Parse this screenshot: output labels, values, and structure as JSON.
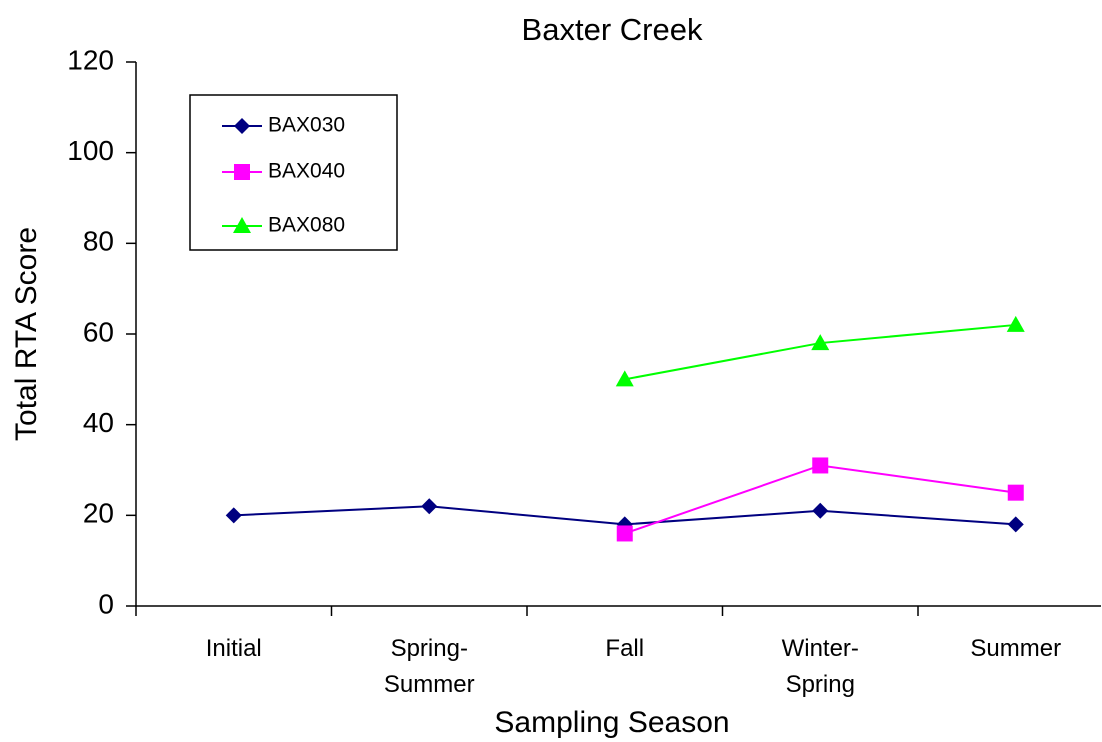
{
  "chart_data": {
    "type": "line",
    "title": "Baxter Creek",
    "x_label": "Sampling Season",
    "y_label": "Total RTA Score",
    "categories": [
      "Initial",
      "Spring-Summer",
      "Fall",
      "Winter-Spring",
      "Summer"
    ],
    "series": [
      {
        "name": "BAX030",
        "color": "#000080",
        "marker": "diamond",
        "values": [
          20,
          22,
          18,
          21,
          18
        ]
      },
      {
        "name": "BAX040",
        "color": "#ff00ff",
        "marker": "square",
        "values": [
          null,
          null,
          16,
          31,
          25
        ]
      },
      {
        "name": "BAX080",
        "color": "#00ff00",
        "marker": "triangle",
        "values": [
          null,
          null,
          50,
          58,
          62
        ]
      }
    ],
    "ylim": [
      0,
      120
    ],
    "yticks": [
      0,
      20,
      40,
      60,
      80,
      100,
      120
    ],
    "grid": false,
    "legend": "upper left"
  }
}
